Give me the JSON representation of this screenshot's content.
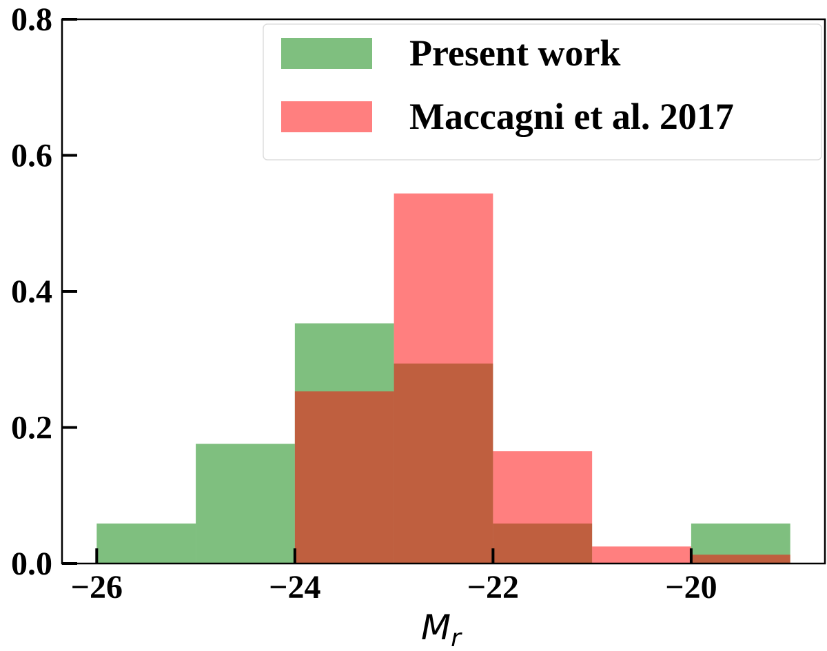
{
  "chart_data": {
    "type": "histogram",
    "bins": [
      -26,
      -25,
      -24,
      -23,
      -22,
      -21,
      -20,
      -19
    ],
    "series": [
      {
        "name": "Present work",
        "color": "green",
        "alpha": 0.5,
        "values": [
          0.0588,
          0.176,
          0.353,
          0.294,
          0.0588,
          0,
          0.0588
        ]
      },
      {
        "name": "Maccagni et al. 2017",
        "color": "red",
        "alpha": 0.5,
        "values": [
          0,
          0,
          0.253,
          0.544,
          0.165,
          0.025,
          0.013
        ]
      }
    ],
    "xlim": [
      -26.35,
      -18.65
    ],
    "ylim": [
      0,
      0.8
    ],
    "xticks": [
      {
        "value": -26,
        "label": "−26"
      },
      {
        "value": -24,
        "label": "−24"
      },
      {
        "value": -22,
        "label": "−22"
      },
      {
        "value": -20,
        "label": "−20"
      }
    ],
    "yticks": [
      {
        "value": 0,
        "label": "0.0"
      },
      0.2,
      0.4,
      0.6,
      0.8
    ],
    "xlabel": {
      "text": "M",
      "subscript": "r"
    },
    "legend": "upper right",
    "grid": false
  }
}
